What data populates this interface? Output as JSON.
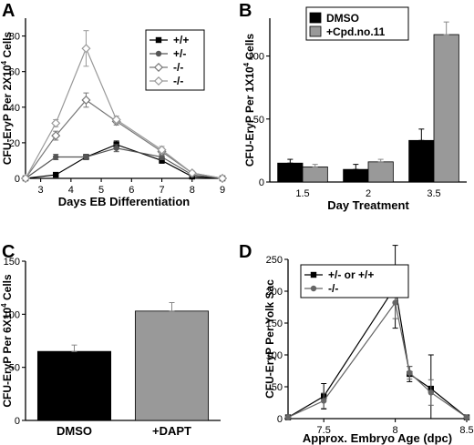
{
  "chart_data": [
    {
      "panel": "A",
      "type": "line",
      "xlabel": "Days EB Differentiation",
      "ylabel": "CFU-EryP Per 2X10^4 Cells",
      "xlim": [
        2.5,
        9
      ],
      "ylim": [
        0,
        90
      ],
      "xticks": [
        3,
        4,
        5,
        6,
        7,
        8,
        9
      ],
      "yticks": [
        0,
        20,
        40,
        60,
        80
      ],
      "legend_position": "top-right",
      "series": [
        {
          "name": "+/+",
          "color": "#000000",
          "marker": "square",
          "x": [
            2.5,
            3.5,
            4.5,
            5.5,
            7,
            8,
            9
          ],
          "y": [
            0,
            2,
            12,
            19,
            10,
            1,
            0
          ],
          "err": [
            0,
            0.5,
            1.5,
            2,
            1.5,
            0.5,
            0
          ]
        },
        {
          "name": "+/-",
          "color": "#555555",
          "marker": "circle",
          "x": [
            2.5,
            3.5,
            4.5,
            5.5,
            7,
            8,
            9
          ],
          "y": [
            0,
            12,
            12,
            17,
            12,
            2,
            0
          ],
          "err": [
            0,
            1.5,
            1.5,
            2,
            1.5,
            0.5,
            0
          ]
        },
        {
          "name": "-/-",
          "color": "#777777",
          "marker": "diamond",
          "x": [
            2.5,
            3.5,
            4.5,
            5.5,
            7,
            8,
            9
          ],
          "y": [
            0,
            24,
            44,
            32,
            15,
            3,
            0
          ],
          "err": [
            0,
            2.5,
            4,
            2,
            2,
            1,
            0
          ]
        },
        {
          "name": "-/-",
          "color": "#999999",
          "marker": "diamond",
          "x": [
            2.5,
            3.5,
            4.5,
            5.5,
            7,
            8,
            9
          ],
          "y": [
            0,
            31,
            73,
            33,
            16,
            3,
            0
          ],
          "err": [
            0,
            2,
            10,
            2,
            2,
            1,
            0
          ]
        }
      ]
    },
    {
      "panel": "B",
      "type": "bar",
      "xlabel": "Day Treatment",
      "ylabel": "CFU-EryP Per 1X10^4 Cells",
      "ylim": [
        0,
        130
      ],
      "yticks": [
        0,
        50,
        100
      ],
      "categories": [
        "1.5",
        "2",
        "3.5"
      ],
      "legend_position": "top-left",
      "series": [
        {
          "name": "DMSO",
          "color": "#000000",
          "values": [
            15,
            10,
            33
          ],
          "err": [
            3,
            4,
            9
          ]
        },
        {
          "name": "+Cpd.no.11",
          "color": "#999999",
          "values": [
            12,
            16,
            117
          ],
          "err": [
            2,
            2,
            10
          ]
        }
      ]
    },
    {
      "panel": "C",
      "type": "bar",
      "xlabel": "",
      "ylabel": "CFU-EryP Per 6X10^4 Cells",
      "ylim": [
        0,
        150
      ],
      "yticks": [
        0,
        50,
        100,
        150
      ],
      "categories": [
        "DMSO",
        "+DAPT"
      ],
      "values": [
        65,
        103
      ],
      "err": [
        6,
        8
      ],
      "colors": [
        "#000000",
        "#999999"
      ]
    },
    {
      "panel": "D",
      "type": "line",
      "xlabel": "Approx. Embryo Age (dpc)",
      "ylabel": "CFU-EryP Per Yolk Sac",
      "xlim": [
        7.25,
        8.5
      ],
      "ylim": [
        0,
        250
      ],
      "xticks": [
        7.5,
        8,
        8.5
      ],
      "yticks": [
        0,
        50,
        100,
        150,
        200,
        250
      ],
      "legend_position": "top-left",
      "series": [
        {
          "name": "+/- or +/+",
          "color": "#000000",
          "marker": "square",
          "x": [
            7.25,
            7.5,
            8,
            8.1,
            8.25,
            8.5
          ],
          "y": [
            2,
            35,
            207,
            70,
            47,
            2
          ],
          "err": [
            0,
            20,
            65,
            12,
            53,
            0
          ]
        },
        {
          "name": "-/-",
          "color": "#666666",
          "marker": "circle",
          "x": [
            7.25,
            7.5,
            8,
            8.1,
            8.25,
            8.5
          ],
          "y": [
            2,
            28,
            182,
            72,
            41,
            2
          ],
          "err": [
            0,
            12,
            25,
            10,
            20,
            0
          ]
        }
      ]
    }
  ]
}
